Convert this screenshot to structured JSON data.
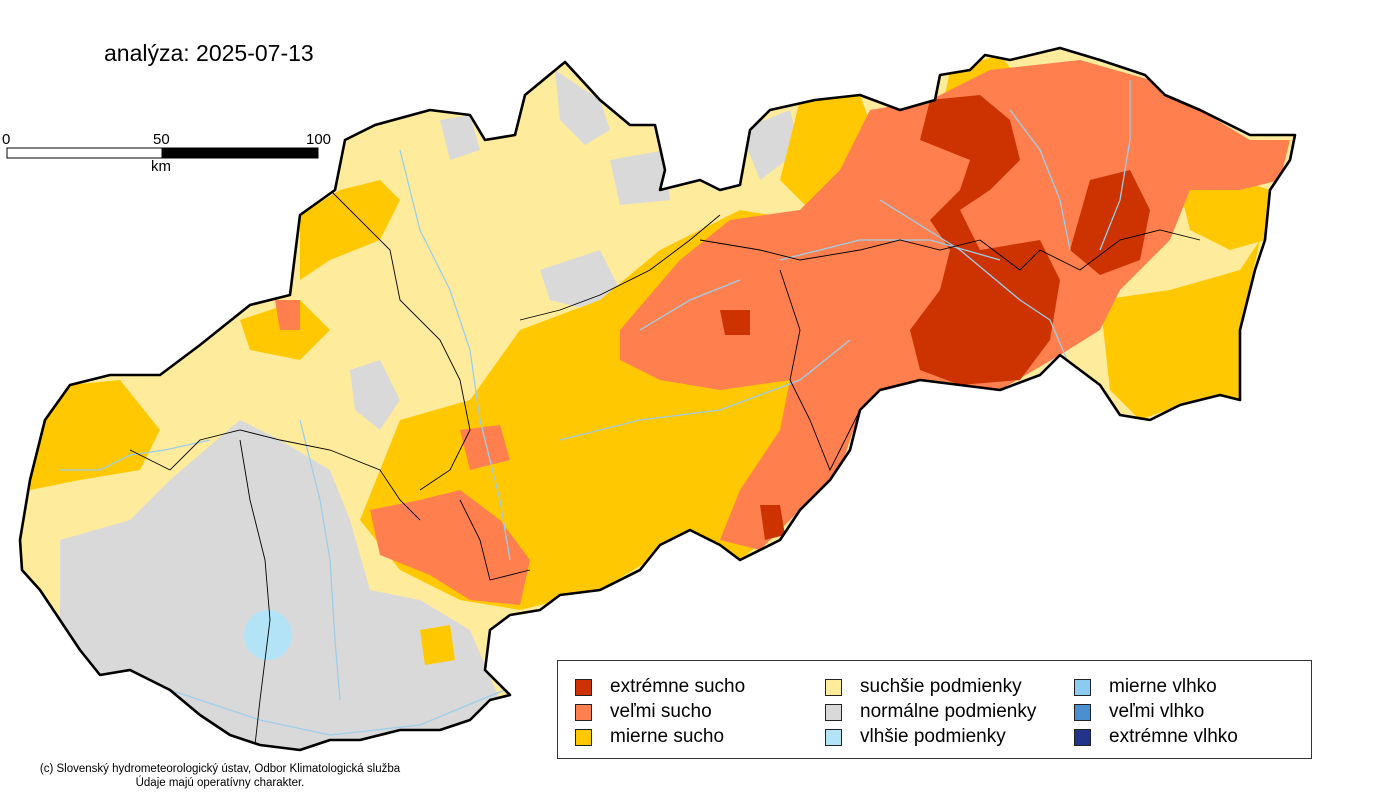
{
  "title": "analýza: 2025-07-13",
  "scale_bar": {
    "ticks": [
      "0",
      "50",
      "100"
    ],
    "unit": "km"
  },
  "legend": [
    {
      "label": "extrémne sucho",
      "color": "#cc3300"
    },
    {
      "label": "veľmi sucho",
      "color": "#ff7f4f"
    },
    {
      "label": "mierne sucho",
      "color": "#ffc800"
    },
    {
      "label": "suchšie podmienky",
      "color": "#ffeb9c"
    },
    {
      "label": "normálne podmienky",
      "color": "#d9d9d9"
    },
    {
      "label": "vlhšie podmienky",
      "color": "#b3e3f7"
    },
    {
      "label": "mierne vlhko",
      "color": "#8ccbf0"
    },
    {
      "label": "veľmi vlhko",
      "color": "#4a90d0"
    },
    {
      "label": "extrémne vlhko",
      "color": "#22338a"
    }
  ],
  "credits": {
    "line1": "(c) Slovenský hydrometeorologický ústav, Odbor Klimatologická služba",
    "line2": "Údaje majú operatívny charakter."
  }
}
